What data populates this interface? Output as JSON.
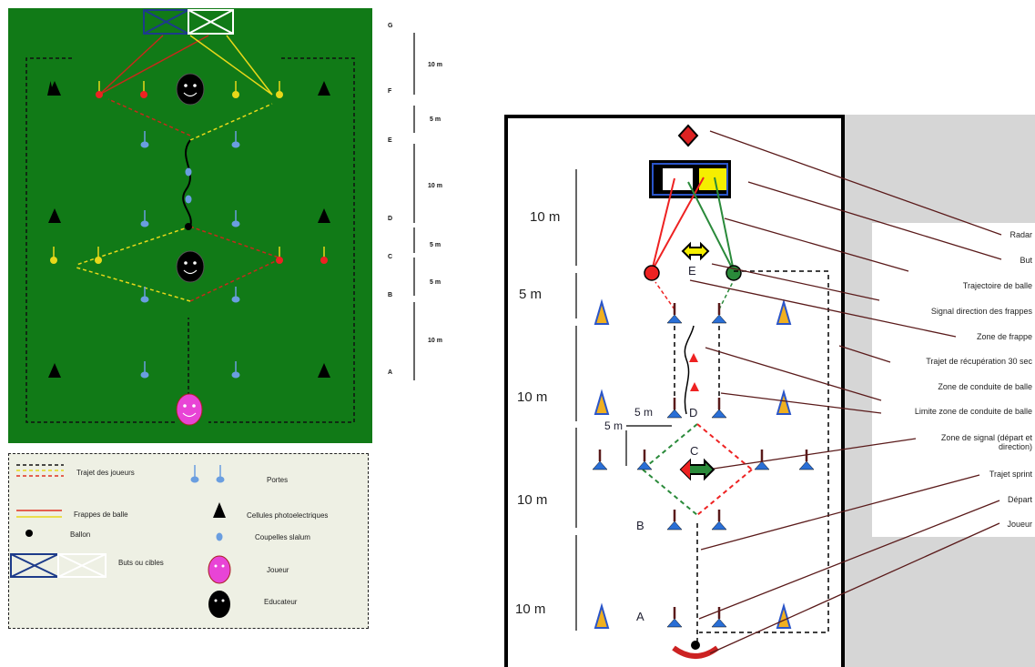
{
  "left_legend": {
    "player_path": "Trajet des joueurs",
    "gates": "Portes",
    "shots": "Frappes de balle",
    "photocells": "Cellules photoelectriques",
    "ball": "Ballon",
    "slalom": "Coupelles slalum",
    "goals": "Buts ou cibles",
    "player": "Joueur",
    "coach": "Educateur"
  },
  "left_scale": {
    "letters": [
      "G",
      "F",
      "E",
      "D",
      "C",
      "B",
      "A"
    ],
    "distances": [
      "10 m",
      "5 m",
      "10 m",
      "5 m",
      "5 m",
      "10 m"
    ]
  },
  "right_diagram": {
    "distances": [
      "10 m",
      "5 m",
      "10 m",
      "10 m",
      "10 m"
    ],
    "zones": [
      "E",
      "D",
      "C",
      "B",
      "A"
    ],
    "small_dist_1": "5 m",
    "small_dist_2": "5 m"
  },
  "right_legend": [
    "Radar",
    "But",
    "Trajectoire de balle",
    "Signal direction des frappes",
    "Zone de frappe",
    "Trajet de récupération 30 sec",
    "Zone de conduite de balle",
    "Limite zone de conduite de balle",
    "Zone de signal (départ et direction)",
    "Trajet sprint",
    "Départ",
    "Joueur"
  ]
}
